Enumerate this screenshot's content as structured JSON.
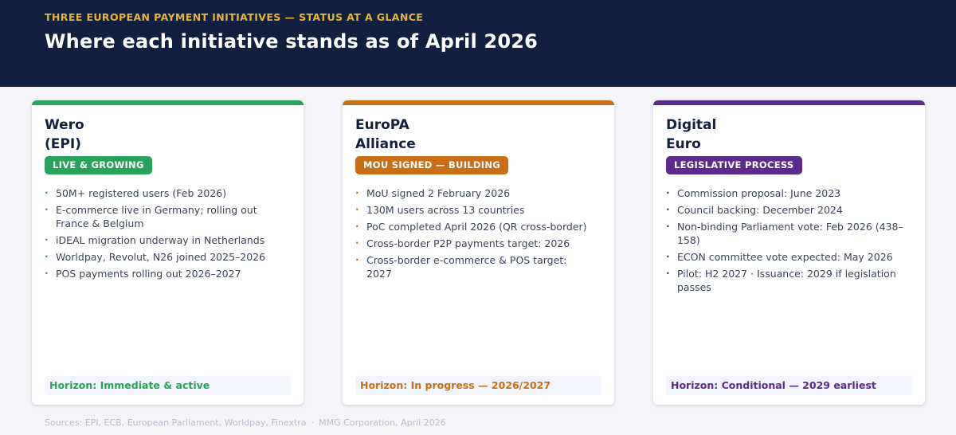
{
  "header": {
    "eyebrow": "THREE EUROPEAN PAYMENT INITIATIVES — STATUS AT A GLANCE",
    "title": "Where each initiative stands as of April 2026"
  },
  "cards": [
    {
      "name_line1": "Wero",
      "name_line2": "(EPI)",
      "badge": "LIVE & GROWING",
      "accent": "#27a35a",
      "items": [
        "50M+ registered users (Feb 2026)",
        "E-commerce live in Germany; rolling out France & Belgium",
        "iDEAL migration underway in Netherlands",
        "Worldpay, Revolut, N26 joined 2025–2026",
        "POS payments rolling out 2026–2027"
      ],
      "horizon": "Horizon: Immediate & active"
    },
    {
      "name_line1": "EuroPA",
      "name_line2": "Alliance",
      "badge": "MOU SIGNED — BUILDING",
      "accent": "#c96d17",
      "items": [
        "MoU signed 2 February 2026",
        "130M users across 13 countries",
        "PoC completed April 2026 (QR cross-border)",
        "Cross-border P2P payments target: 2026",
        "Cross-border e-commerce & POS target: 2027"
      ],
      "horizon": "Horizon: In progress — 2026/2027"
    },
    {
      "name_line1": "Digital",
      "name_line2": "Euro",
      "badge": "LEGISLATIVE PROCESS",
      "accent": "#5b2a8c",
      "items": [
        "Commission proposal: June 2023",
        "Council backing: December 2024",
        "Non-binding Parliament vote: Feb 2026 (438–158)",
        "ECON committee vote expected: May 2026",
        "Pilot: H2 2027 · Issuance: 2029 if legislation passes"
      ],
      "horizon": "Horizon: Conditional — 2029 earliest"
    }
  ],
  "footer": {
    "sources": "Sources: EPI, ECB, European Parliament, Worldpay, Finextra",
    "separator": "·",
    "credit": "MMG Corporation, April 2026"
  }
}
